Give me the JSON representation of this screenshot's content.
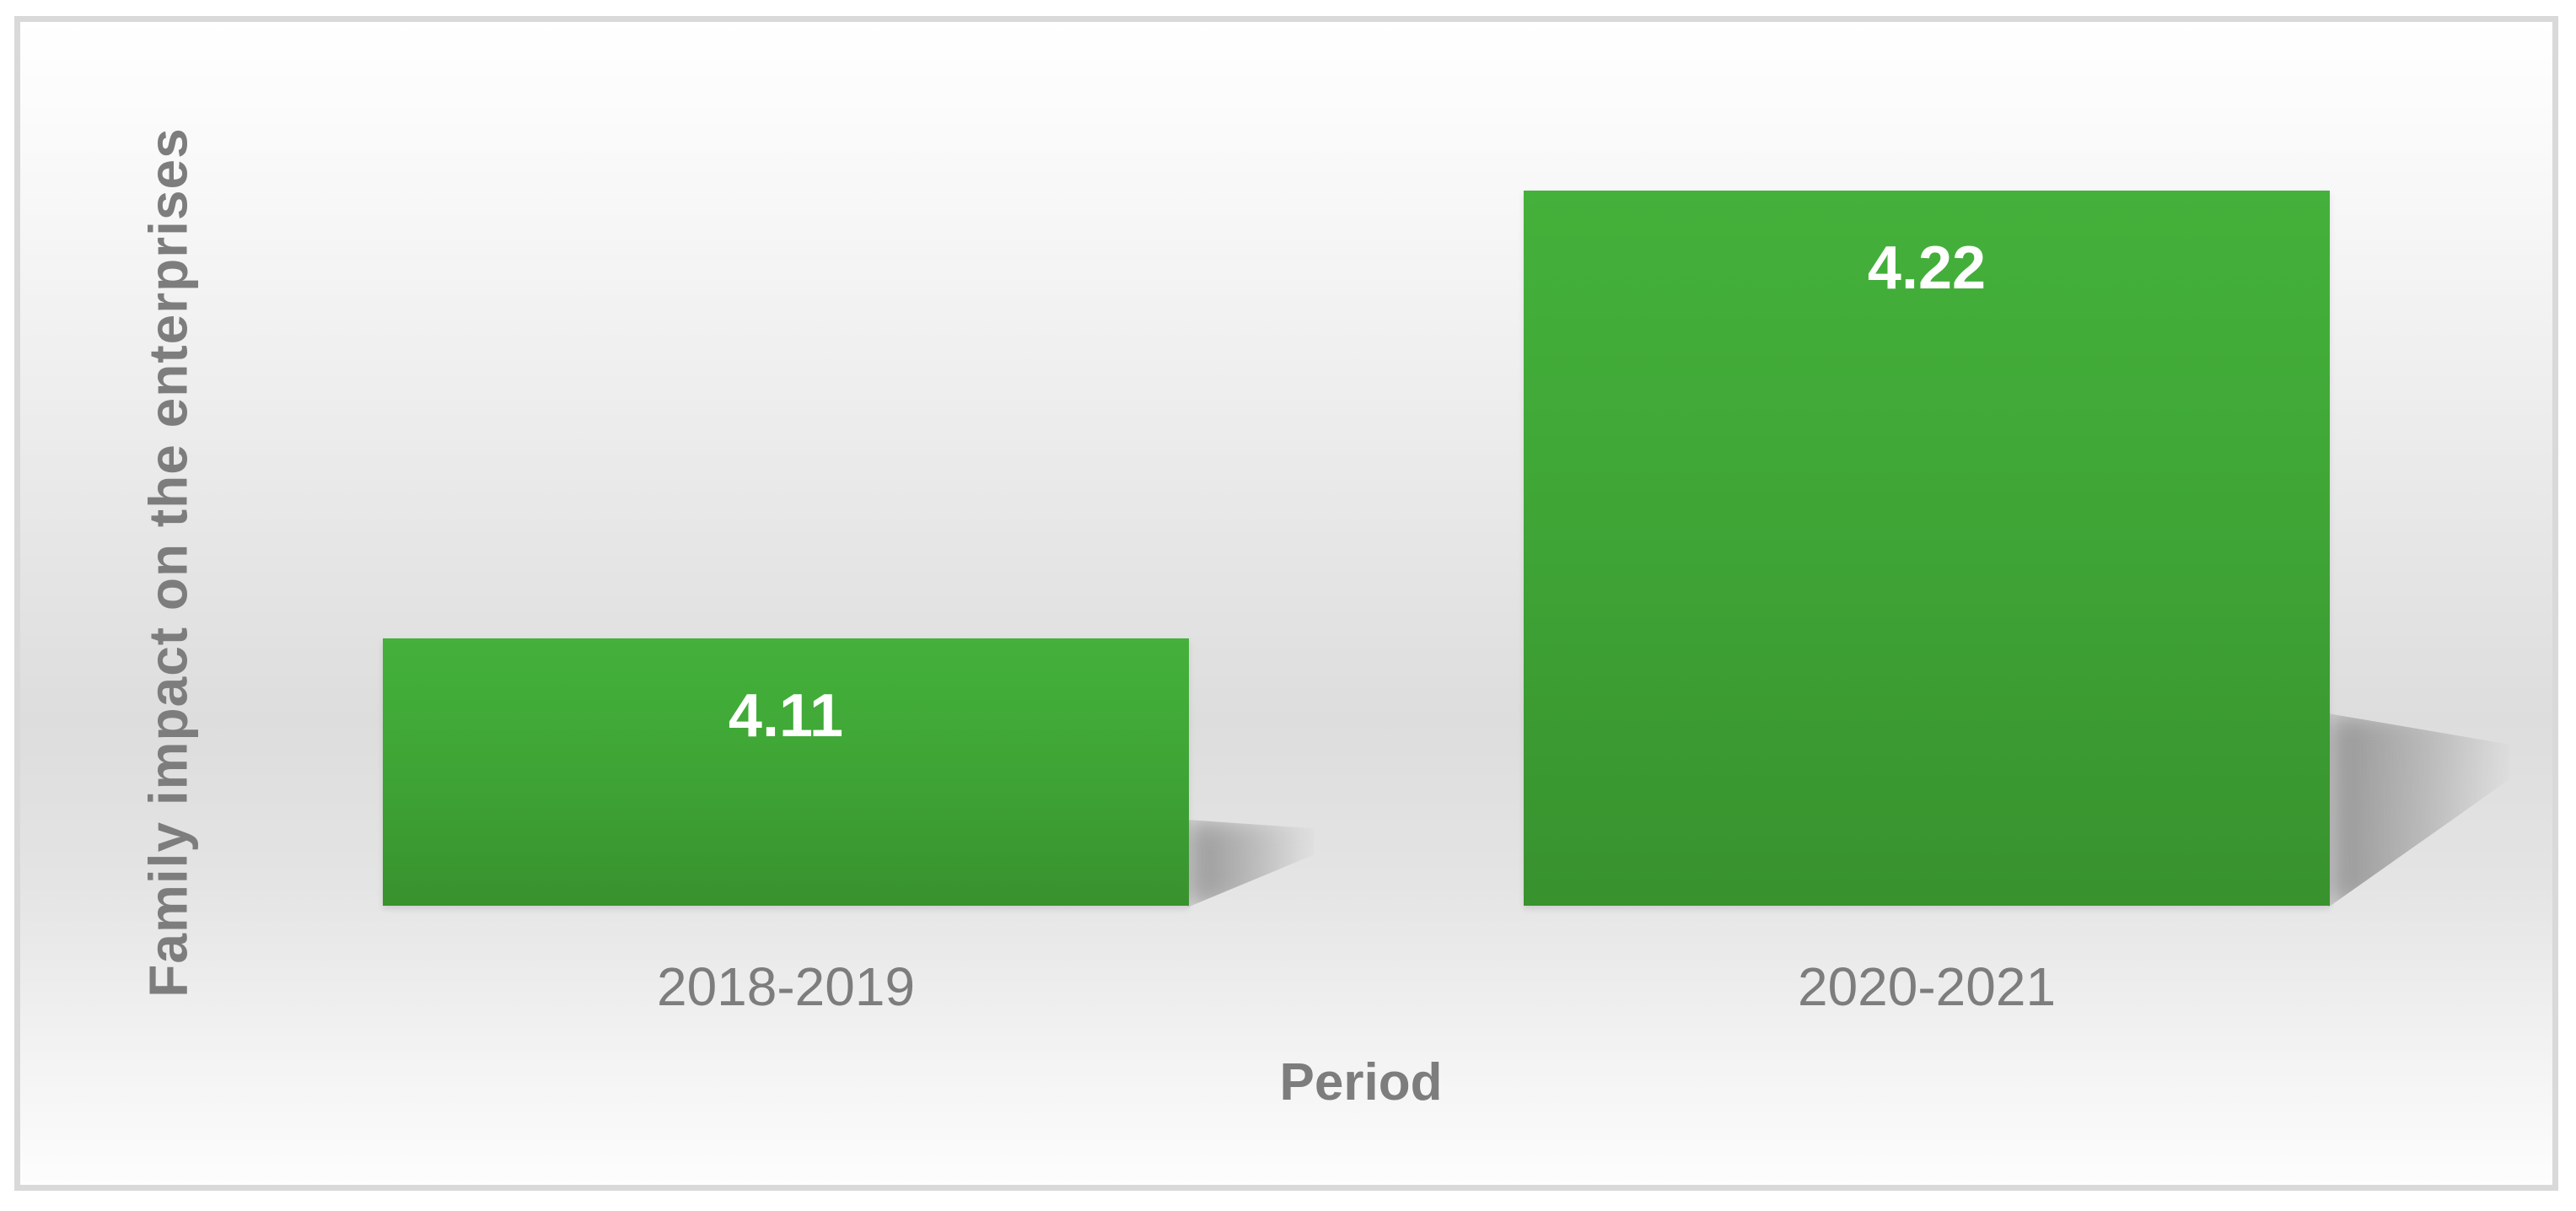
{
  "chart_data": {
    "type": "bar",
    "title": "",
    "categories": [
      "2018-2019",
      "2020-2021"
    ],
    "values": [
      "4.11",
      "4.22"
    ],
    "series": [
      {
        "name": "Family impact on the enterprises",
        "values": [
          4.11,
          4.22
        ]
      }
    ],
    "xlabel": "Period",
    "ylabel": "Family impact on the enterprises",
    "grid": false,
    "legend_position": "none",
    "y_axis_ticks_visible": false,
    "bar_color_top": "#44b13b",
    "bar_color_bottom": "#38922e",
    "bar_value_label_color": "#ffffff",
    "axis_text_color": "#7d7d7d",
    "frame_border_color": "#d9d9d9"
  }
}
